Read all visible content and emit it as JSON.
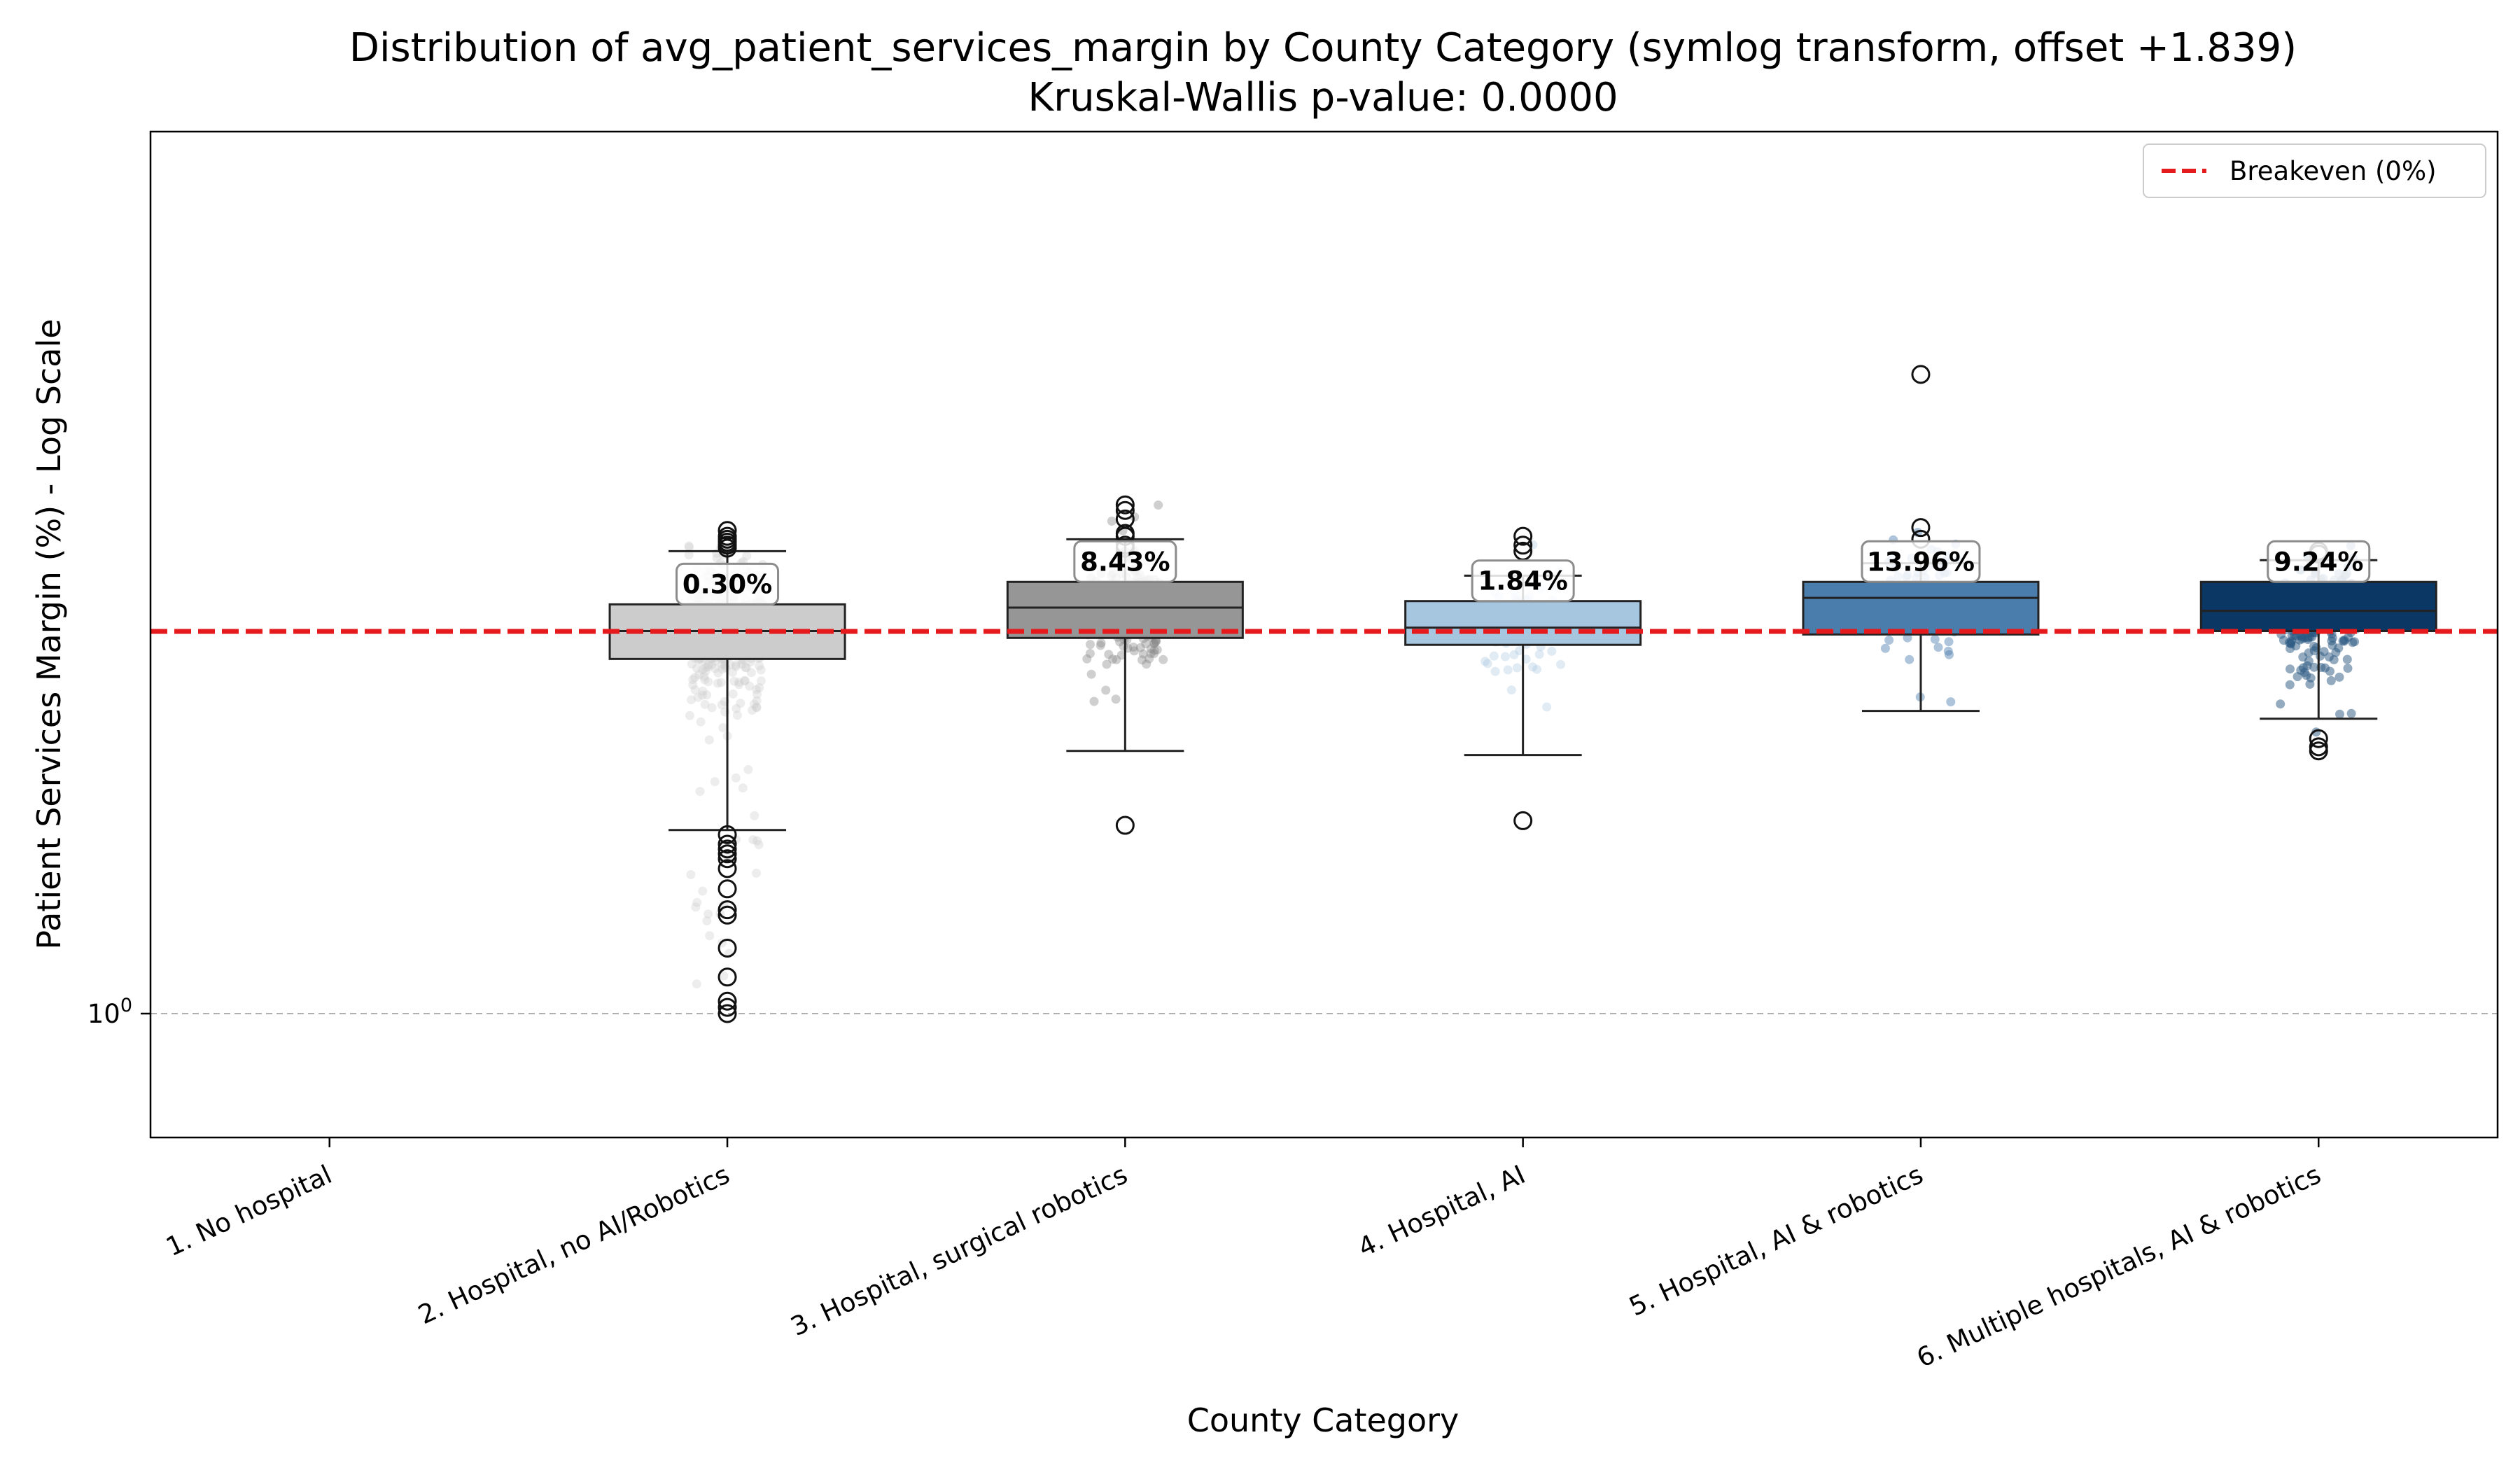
{
  "chart_data": {
    "type": "box",
    "title": "Distribution of avg_patient_services_margin by County Category (symlog transform, offset +1.839)",
    "subtitle": "Kruskal-Wallis p-value: 0.0000",
    "xlabel": "County Category",
    "ylabel": "Patient Services Margin (%) - Log Scale",
    "y_scale": "log",
    "y_ticks": [
      {
        "value": 1,
        "label": "10^0"
      }
    ],
    "grid": "horizontal dashed at y tick",
    "legend": {
      "position": "top-right",
      "entries": [
        {
          "label": "Breakeven (0%)",
          "color": "#e41a1c",
          "style": "dashed"
        }
      ]
    },
    "reference_line": {
      "label": "Breakeven (0%)",
      "y": 1.839
    },
    "categories": [
      "1. No hospital",
      "2. Hospital, no AI/Robotics",
      "3. Hospital, surgical robotics",
      "4. Hospital, AI",
      "5. Hospital, AI & robotics",
      "6. Multiple hospitals, AI & robotics"
    ],
    "series": [
      {
        "category": "1. No hospital",
        "empty": true
      },
      {
        "category": "2. Hospital, no AI/Robotics",
        "color": "#cccccc",
        "median_label": "0.30%",
        "whisker_low": 1.34,
        "q1": 1.76,
        "median": 1.84,
        "q3": 1.92,
        "whisker_high": 2.09,
        "outliers": [
          2.16,
          2.14,
          2.13,
          2.12,
          2.11,
          2.1,
          1.33,
          1.31,
          1.3,
          1.29,
          1.28,
          1.26,
          1.22,
          1.18,
          1.17,
          1.11,
          1.06,
          1.02,
          1.01,
          1.0
        ],
        "points": {
          "count": 420,
          "low": 1.04,
          "high": 2.16,
          "center": 1.84,
          "spread": 0.1,
          "alpha": 0.35,
          "color": "#cccccc"
        }
      },
      {
        "category": "3. Hospital, surgical robotics",
        "color": "#969696",
        "median_label": "8.43%",
        "whisker_low": 1.52,
        "q1": 1.82,
        "median": 1.91,
        "q3": 1.99,
        "whisker_high": 2.13,
        "outliers": [
          2.25,
          2.23,
          2.2,
          2.15,
          2.14,
          2.11,
          2.1,
          1.35
        ],
        "points": {
          "count": 200,
          "low": 1.55,
          "high": 2.25,
          "center": 1.9,
          "spread": 0.08,
          "alpha": 0.4,
          "color": "#888888"
        }
      },
      {
        "category": "4. Hospital, AI",
        "color": "#a6c6e0",
        "median_label": "1.84%",
        "whisker_low": 1.51,
        "q1": 1.8,
        "median": 1.85,
        "q3": 1.93,
        "whisker_high": 2.01,
        "outliers": [
          2.14,
          2.11,
          2.09,
          1.36
        ],
        "points": {
          "count": 60,
          "low": 1.5,
          "high": 2.14,
          "center": 1.86,
          "spread": 0.09,
          "alpha": 0.35,
          "color": "#a6c6e0"
        }
      },
      {
        "category": "5. Hospital, AI & robotics",
        "color": "#4a7cac",
        "median_label": "13.96%",
        "whisker_low": 1.62,
        "q1": 1.83,
        "median": 1.94,
        "q3": 1.99,
        "whisker_high": 2.05,
        "outliers": [
          2.77,
          2.17,
          2.13
        ],
        "points": {
          "count": 90,
          "low": 1.62,
          "high": 2.17,
          "center": 1.93,
          "spread": 0.08,
          "alpha": 0.45,
          "color": "#4a7cac"
        }
      },
      {
        "category": "6. Multiple hospitals, AI & robotics",
        "color": "#0b3764",
        "median_label": "9.24%",
        "whisker_low": 1.6,
        "q1": 1.84,
        "median": 1.9,
        "q3": 1.99,
        "whisker_high": 2.06,
        "outliers": [
          2.09,
          2.08,
          1.55,
          1.53,
          1.52
        ],
        "points": {
          "count": 220,
          "low": 1.55,
          "high": 2.12,
          "center": 1.88,
          "spread": 0.08,
          "alpha": 0.5,
          "color": "#27557f"
        }
      }
    ]
  }
}
